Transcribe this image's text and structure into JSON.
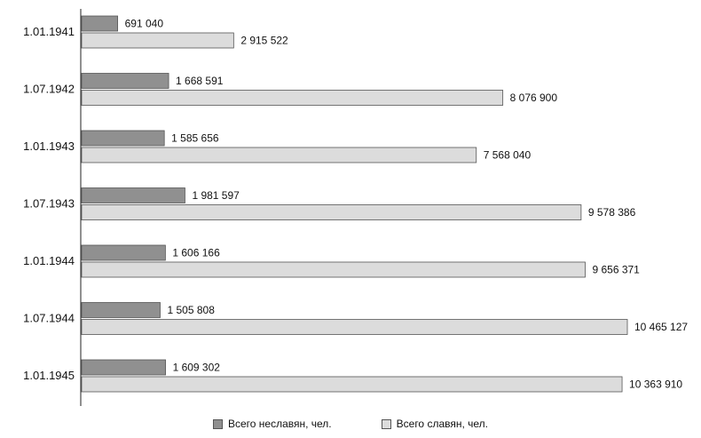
{
  "chart_data": {
    "type": "bar",
    "orientation": "horizontal",
    "categories": [
      "1.01.1941",
      "1.07.1942",
      "1.01.1943",
      "1.07.1943",
      "1.01.1944",
      "1.07.1944",
      "1.01.1945"
    ],
    "series": [
      {
        "name": "Всего неславян, чел.",
        "values": [
          691040,
          1668591,
          1585656,
          1981597,
          1606166,
          1505808,
          1609302
        ],
        "labels": [
          "691 040",
          "1 668 591",
          "1 585 656",
          "1 981 597",
          "1 606 166",
          "1 505 808",
          "1 609 302"
        ],
        "color": "#909090"
      },
      {
        "name": "Всего славян, чел.",
        "values": [
          2915522,
          8076900,
          7568040,
          9578386,
          9656371,
          10465127,
          10363910
        ],
        "labels": [
          "2 915 522",
          "8 076 900",
          "7 568 040",
          "9 578 386",
          "9 656 371",
          "10 465 127",
          "10 363 910"
        ],
        "color": "#dcdcdc"
      }
    ],
    "xlim": [
      0,
      10465127
    ],
    "grid": false,
    "legend_position": "bottom"
  }
}
